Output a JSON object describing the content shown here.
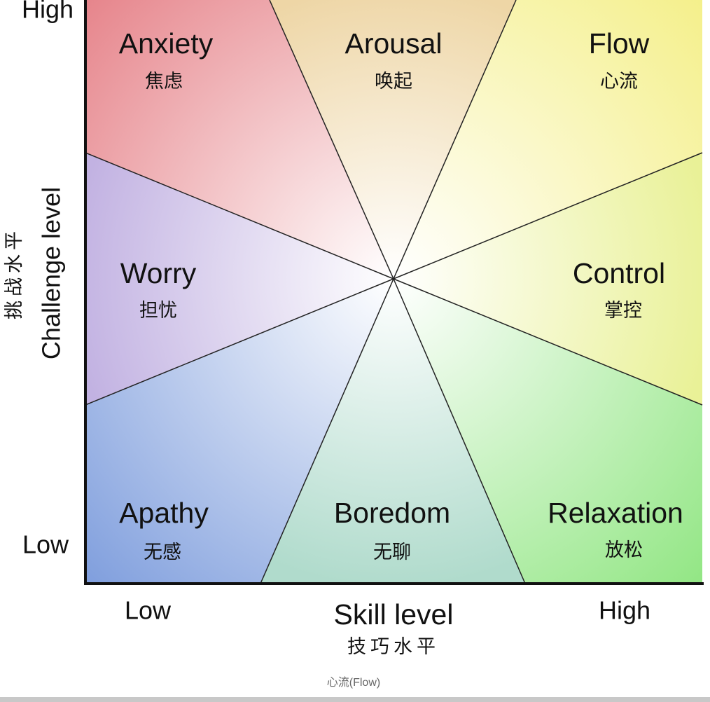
{
  "axes": {
    "y_high": "High",
    "y_low": "Low",
    "y_title": "Challenge level",
    "y_title_zh": "挑战水平",
    "x_low": "Low",
    "x_title": "Skill level",
    "x_title_zh": "技巧水平",
    "x_high": "High"
  },
  "regions": [
    {
      "label": "Anxiety",
      "label_zh": "焦虑"
    },
    {
      "label": "Arousal",
      "label_zh": "唤起"
    },
    {
      "label": "Flow",
      "label_zh": "心流"
    },
    {
      "label": "Worry",
      "label_zh": "担忧"
    },
    {
      "label": "Control",
      "label_zh": "掌控"
    },
    {
      "label": "Apathy",
      "label_zh": "无感"
    },
    {
      "label": "Boredom",
      "label_zh": "无聊"
    },
    {
      "label": "Relaxation",
      "label_zh": "放松"
    }
  ],
  "caption": "心流(Flow)"
}
